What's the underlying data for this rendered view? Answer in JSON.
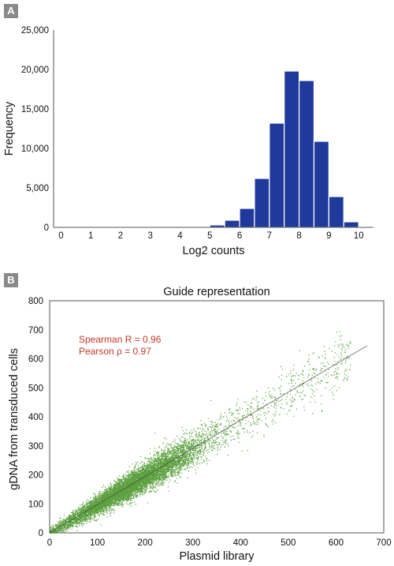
{
  "chart_data": [
    {
      "type": "bar",
      "panel": "A",
      "title": "",
      "xlabel": "Log2 counts",
      "ylabel": "Frequency",
      "xlim": [
        -0.25,
        10.5
      ],
      "ylim": [
        0,
        25000
      ],
      "x_ticks": [
        "0",
        "1",
        "2",
        "3",
        "4",
        "5",
        "6",
        "7",
        "8",
        "9",
        "10"
      ],
      "y_ticks": [
        "0",
        "5,000",
        "10,000",
        "15,000",
        "20,000",
        "25,000"
      ],
      "bin_width": 0.5,
      "bin_starts": [
        4.5,
        5.0,
        5.5,
        6.0,
        6.5,
        7.0,
        7.5,
        8.0,
        8.5,
        9.0,
        9.5
      ],
      "values": [
        80,
        300,
        900,
        2400,
        6200,
        13200,
        19800,
        18600,
        10900,
        3900,
        700
      ],
      "color": "#1f3a9b",
      "grid": false
    },
    {
      "type": "scatter",
      "panel": "B",
      "title": "Guide representation",
      "xlabel": "Plasmid library",
      "ylabel": "gDNA from transduced cells",
      "xlim": [
        0,
        700
      ],
      "ylim": [
        0,
        800
      ],
      "x_ticks": [
        "0",
        "100",
        "200",
        "300",
        "400",
        "500",
        "600",
        "700"
      ],
      "y_ticks": [
        "0",
        "100",
        "200",
        "300",
        "400",
        "500",
        "600",
        "700",
        "800"
      ],
      "annotations": [
        "Spearman R = 0.96",
        "Pearson ρ = 0.97"
      ],
      "trend_line": {
        "x": [
          0,
          665
        ],
        "y": [
          0,
          645
        ]
      },
      "point_color": "#3f8f1f",
      "grid": false
    }
  ],
  "panels": {
    "a_label": "A",
    "b_label": "B"
  }
}
